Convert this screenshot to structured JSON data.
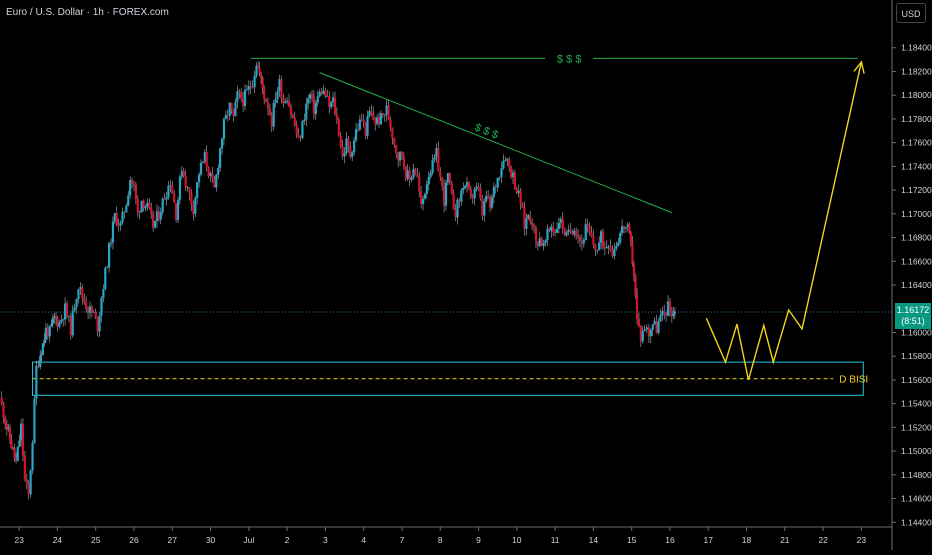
{
  "title": "Euro / U.S. Dollar · 1h · FOREX.com",
  "currency_label": "USD",
  "last_price": {
    "value": "1.16172",
    "countdown": "(8:51)"
  },
  "colors": {
    "background": "#000000",
    "up": "#26a6c8",
    "down": "#d0152f",
    "wick": "#b2b5be",
    "axis_text": "#d1d4dc",
    "grid_line": "#2a2e39",
    "price_line": "#2a7db0",
    "badge": "#089981",
    "trendline": "#22b14c",
    "projection": "#f2d31b",
    "zone": "#26c6da"
  },
  "chart_data": {
    "type": "candlestick",
    "timeframe": "1h",
    "y_axis": {
      "ylim": [
        1.1436,
        1.186
      ],
      "tick_labels": [
        "1.18400",
        "1.18200",
        "1.18000",
        "1.17800",
        "1.17600",
        "1.17400",
        "1.17200",
        "1.17000",
        "1.16800",
        "1.16600",
        "1.16400",
        "1.16000",
        "1.15800",
        "1.15600",
        "1.15400",
        "1.15200",
        "1.15000",
        "1.14800",
        "1.14600",
        "1.14400"
      ],
      "tick_values": [
        1.184,
        1.182,
        1.18,
        1.178,
        1.176,
        1.174,
        1.172,
        1.17,
        1.168,
        1.166,
        1.164,
        1.16,
        1.158,
        1.156,
        1.154,
        1.152,
        1.15,
        1.148,
        1.146,
        1.144
      ]
    },
    "x_axis": {
      "tick_labels": [
        "23",
        "24",
        "25",
        "26",
        "27",
        "30",
        "Jul",
        "2",
        "3",
        "4",
        "7",
        "8",
        "9",
        "10",
        "11",
        "14",
        "15",
        "16",
        "17",
        "18",
        "21",
        "22",
        "23"
      ],
      "tick_positions": [
        0.5,
        1.5,
        2.5,
        3.5,
        4.5,
        5.5,
        6.5,
        7.5,
        8.5,
        9.5,
        10.5,
        11.5,
        12.5,
        13.5,
        14.5,
        15.5,
        16.5,
        17.5,
        18.5,
        19.5,
        20.5,
        21.5,
        22.5
      ],
      "xlim": [
        0,
        23.3
      ]
    },
    "price_path": [
      [
        0.0,
        1.1545
      ],
      [
        0.18,
        1.152
      ],
      [
        0.3,
        1.1505
      ],
      [
        0.42,
        1.149
      ],
      [
        0.55,
        1.152
      ],
      [
        0.65,
        1.1475
      ],
      [
        0.75,
        1.1462
      ],
      [
        0.85,
        1.151
      ],
      [
        0.95,
        1.157
      ],
      [
        1.05,
        1.1582
      ],
      [
        1.12,
        1.159
      ],
      [
        1.2,
        1.1602
      ],
      [
        1.3,
        1.16
      ],
      [
        1.42,
        1.1612
      ],
      [
        1.55,
        1.1608
      ],
      [
        1.7,
        1.162
      ],
      [
        1.85,
        1.1603
      ],
      [
        1.95,
        1.1625
      ],
      [
        2.05,
        1.164
      ],
      [
        2.15,
        1.163
      ],
      [
        2.3,
        1.162
      ],
      [
        2.45,
        1.1615
      ],
      [
        2.55,
        1.1605
      ],
      [
        2.65,
        1.163
      ],
      [
        2.8,
        1.166
      ],
      [
        2.9,
        1.168
      ],
      [
        3.0,
        1.1698
      ],
      [
        3.15,
        1.169
      ],
      [
        3.3,
        1.171
      ],
      [
        3.4,
        1.173
      ],
      [
        3.5,
        1.1722
      ],
      [
        3.6,
        1.17
      ],
      [
        3.7,
        1.1712
      ],
      [
        3.85,
        1.1705
      ],
      [
        4.0,
        1.169
      ],
      [
        4.15,
        1.17
      ],
      [
        4.3,
        1.1715
      ],
      [
        4.45,
        1.1728
      ],
      [
        4.6,
        1.17
      ],
      [
        4.75,
        1.174
      ],
      [
        4.9,
        1.172
      ],
      [
        5.05,
        1.1705
      ],
      [
        5.2,
        1.1735
      ],
      [
        5.35,
        1.1748
      ],
      [
        5.5,
        1.173
      ],
      [
        5.6,
        1.172
      ],
      [
        5.75,
        1.1755
      ],
      [
        5.85,
        1.1775
      ],
      [
        6.0,
        1.179
      ],
      [
        6.1,
        1.178
      ],
      [
        6.2,
        1.18
      ],
      [
        6.35,
        1.1796
      ],
      [
        6.5,
        1.1805
      ],
      [
        6.6,
        1.1812
      ],
      [
        6.7,
        1.1828
      ],
      [
        6.78,
        1.1818
      ],
      [
        6.9,
        1.18
      ],
      [
        7.0,
        1.1792
      ],
      [
        7.1,
        1.1778
      ],
      [
        7.2,
        1.18
      ],
      [
        7.3,
        1.181
      ],
      [
        7.4,
        1.1795
      ],
      [
        7.5,
        1.18
      ],
      [
        7.6,
        1.1785
      ],
      [
        7.7,
        1.1775
      ],
      [
        7.8,
        1.176
      ],
      [
        7.9,
        1.1775
      ],
      [
        8.0,
        1.1792
      ],
      [
        8.1,
        1.18
      ],
      [
        8.2,
        1.1788
      ],
      [
        8.3,
        1.1798
      ],
      [
        8.4,
        1.1804
      ],
      [
        8.5,
        1.18
      ],
      [
        8.6,
        1.179
      ],
      [
        8.7,
        1.1795
      ],
      [
        8.85,
        1.177
      ],
      [
        8.95,
        1.1748
      ],
      [
        9.05,
        1.176
      ],
      [
        9.15,
        1.175
      ],
      [
        9.3,
        1.177
      ],
      [
        9.45,
        1.178
      ],
      [
        9.55,
        1.177
      ],
      [
        9.65,
        1.1785
      ],
      [
        9.8,
        1.1778
      ],
      [
        9.95,
        1.178
      ],
      [
        10.1,
        1.1788
      ],
      [
        10.2,
        1.1775
      ],
      [
        10.3,
        1.176
      ],
      [
        10.4,
        1.1748
      ],
      [
        10.5,
        1.175
      ],
      [
        10.6,
        1.1735
      ],
      [
        10.7,
        1.1728
      ],
      [
        10.8,
        1.174
      ],
      [
        10.9,
        1.173
      ],
      [
        11.0,
        1.1705
      ],
      [
        11.1,
        1.172
      ],
      [
        11.2,
        1.1735
      ],
      [
        11.3,
        1.174
      ],
      [
        11.4,
        1.175
      ],
      [
        11.5,
        1.173
      ],
      [
        11.6,
        1.1712
      ],
      [
        11.7,
        1.1732
      ],
      [
        11.8,
        1.1712
      ],
      [
        11.9,
        1.1702
      ],
      [
        12.0,
        1.1712
      ],
      [
        12.1,
        1.1725
      ],
      [
        12.2,
        1.1722
      ],
      [
        12.3,
        1.171
      ],
      [
        12.4,
        1.1722
      ],
      [
        12.5,
        1.1718
      ],
      [
        12.6,
        1.17
      ],
      [
        12.7,
        1.1715
      ],
      [
        12.8,
        1.1705
      ],
      [
        12.9,
        1.172
      ],
      [
        13.0,
        1.173
      ],
      [
        13.1,
        1.1742
      ],
      [
        13.2,
        1.175
      ],
      [
        13.3,
        1.174
      ],
      [
        13.4,
        1.1732
      ],
      [
        13.5,
        1.172
      ],
      [
        13.6,
        1.171
      ],
      [
        13.7,
        1.169
      ],
      [
        13.8,
        1.17
      ],
      [
        13.9,
        1.1695
      ],
      [
        14.0,
        1.1675
      ],
      [
        14.1,
        1.168
      ],
      [
        14.2,
        1.1672
      ],
      [
        14.3,
        1.1682
      ],
      [
        14.4,
        1.169
      ],
      [
        14.5,
        1.1685
      ],
      [
        14.6,
        1.1695
      ],
      [
        14.7,
        1.169
      ],
      [
        14.8,
        1.168
      ],
      [
        14.9,
        1.1686
      ],
      [
        15.0,
        1.169
      ],
      [
        15.1,
        1.1682
      ],
      [
        15.2,
        1.1675
      ],
      [
        15.3,
        1.1688
      ],
      [
        15.4,
        1.1682
      ],
      [
        15.5,
        1.1674
      ],
      [
        15.6,
        1.167
      ],
      [
        15.7,
        1.168
      ],
      [
        15.8,
        1.1672
      ],
      [
        15.9,
        1.1678
      ],
      [
        16.0,
        1.1668
      ],
      [
        16.1,
        1.1676
      ],
      [
        16.2,
        1.1684
      ],
      [
        16.3,
        1.169
      ],
      [
        16.4,
        1.1686
      ],
      [
        16.48,
        1.1672
      ],
      [
        16.56,
        1.165
      ],
      [
        16.64,
        1.161
      ],
      [
        16.74,
        1.1596
      ],
      [
        16.84,
        1.1605
      ],
      [
        16.95,
        1.16
      ],
      [
        17.05,
        1.1608
      ],
      [
        17.15,
        1.1604
      ],
      [
        17.25,
        1.1612
      ],
      [
        17.35,
        1.1616
      ],
      [
        17.45,
        1.1622
      ],
      [
        17.55,
        1.1618
      ],
      [
        17.63,
        1.16172
      ]
    ],
    "annotations": {
      "resistance_line": {
        "x": [
          6.55,
          22.4
        ],
        "y": 1.1831,
        "label": "$ $ $"
      },
      "descending_trendline": {
        "x": [
          8.35,
          17.55
        ],
        "y": [
          1.1819,
          1.1701
        ],
        "label": "$ $ $"
      },
      "demand_zone": {
        "x": [
          0.85,
          22.55
        ],
        "y": [
          1.1547,
          1.1575
        ],
        "midline": 1.1561,
        "label": "D BISI"
      },
      "projection_path": [
        [
          18.45,
          1.1612
        ],
        [
          18.95,
          1.1575
        ],
        [
          19.25,
          1.1607
        ],
        [
          19.55,
          1.156
        ],
        [
          19.95,
          1.1606
        ],
        [
          20.2,
          1.1575
        ],
        [
          20.6,
          1.1619
        ],
        [
          20.95,
          1.1603
        ],
        [
          22.5,
          1.1828
        ]
      ],
      "last_price_line": 1.16172
    }
  }
}
